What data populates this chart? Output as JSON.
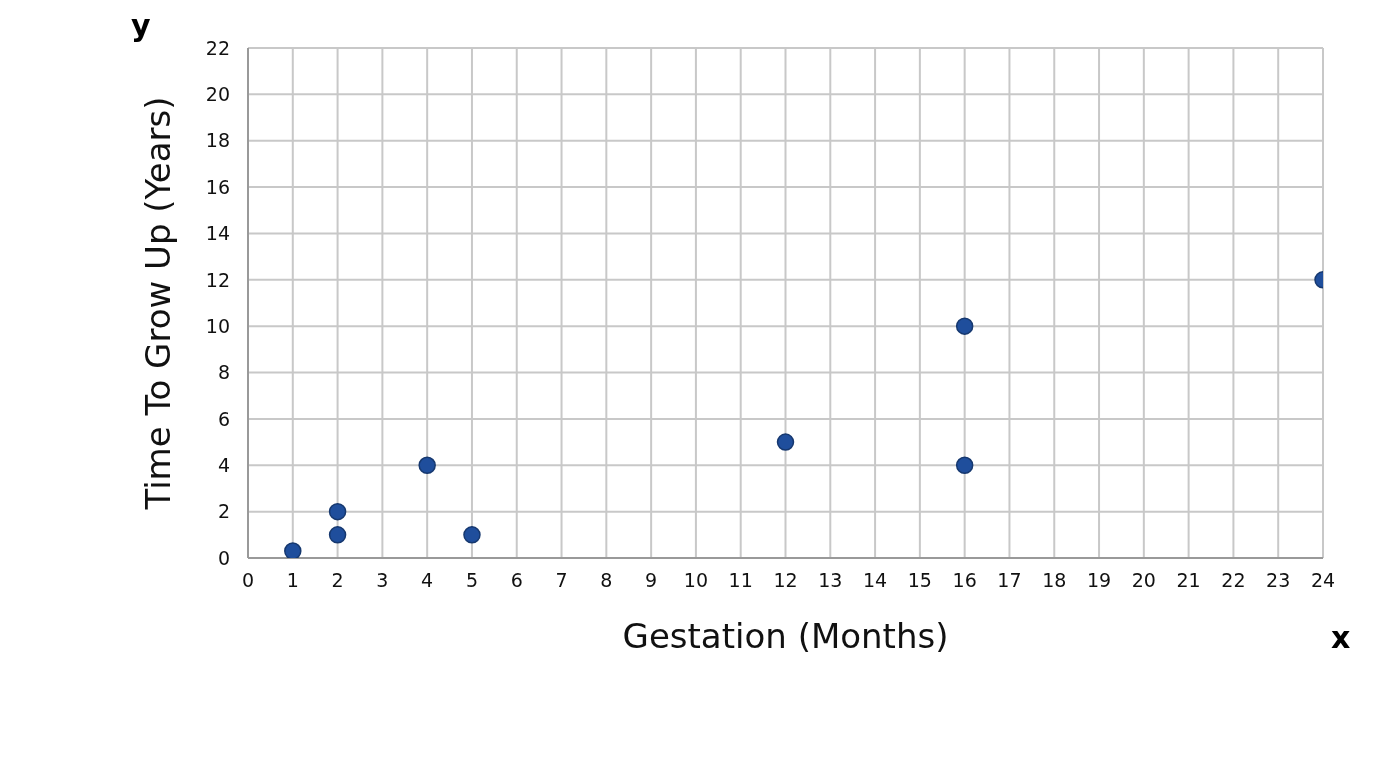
{
  "chart_data": {
    "type": "scatter",
    "xlabel": "Gestation (Months)",
    "ylabel": "Time To Grow Up (Years)",
    "annotations": [
      "y",
      "x"
    ],
    "x": [
      1,
      2,
      2,
      4,
      5,
      12,
      16,
      16,
      24
    ],
    "values": [
      0.3,
      2,
      1,
      4,
      1,
      5,
      10,
      4,
      12
    ],
    "color": "#1f4e9c",
    "marker": "circle",
    "xlim": [
      0,
      24
    ],
    "xticks": [
      0,
      1,
      2,
      3,
      4,
      5,
      6,
      7,
      8,
      9,
      10,
      11,
      12,
      13,
      14,
      15,
      16,
      17,
      18,
      19,
      20,
      21,
      22,
      23,
      24
    ],
    "ylim": [
      0,
      22
    ],
    "yticks": [
      0,
      2,
      4,
      6,
      8,
      10,
      12,
      14,
      16,
      18,
      20,
      22
    ],
    "grid": true
  }
}
